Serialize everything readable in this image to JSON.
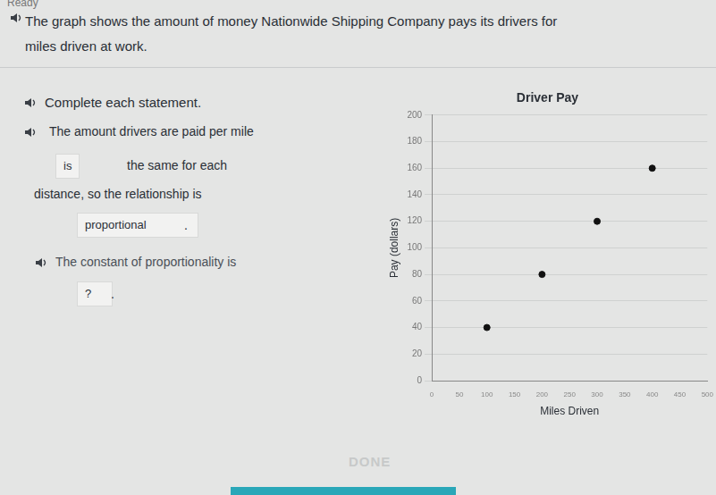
{
  "page": {
    "status": "Ready",
    "intro": "The graph shows the amount of money Nationwide Shipping Company pays its drivers for miles driven at work.",
    "instruction": "Complete each statement.",
    "statement1": {
      "before": "The amount drivers are paid per mile",
      "answer1": "is",
      "middle1": "the same for each",
      "middle2": "distance, so the relationship is",
      "answer2": "proportional",
      "end": "."
    },
    "statement2": {
      "text": "The constant of proportionality is",
      "answer": "?",
      "end": "."
    },
    "button": "DONE"
  },
  "chart_data": {
    "type": "scatter",
    "title": "Driver Pay",
    "x_label": "Miles Driven",
    "y_label": "Pay (dollars)",
    "x": [
      100,
      200,
      300,
      400
    ],
    "values": [
      40,
      80,
      120,
      160
    ],
    "color": "#111111",
    "marker": "circle",
    "xlim": [
      0,
      500
    ],
    "xticks": [
      0,
      50,
      100,
      150,
      200,
      250,
      300,
      350,
      400,
      450,
      500
    ],
    "ylim": [
      0,
      200
    ],
    "yticks": [
      0,
      20,
      40,
      60,
      80,
      100,
      120,
      140,
      160,
      180,
      200
    ],
    "grid": true
  }
}
